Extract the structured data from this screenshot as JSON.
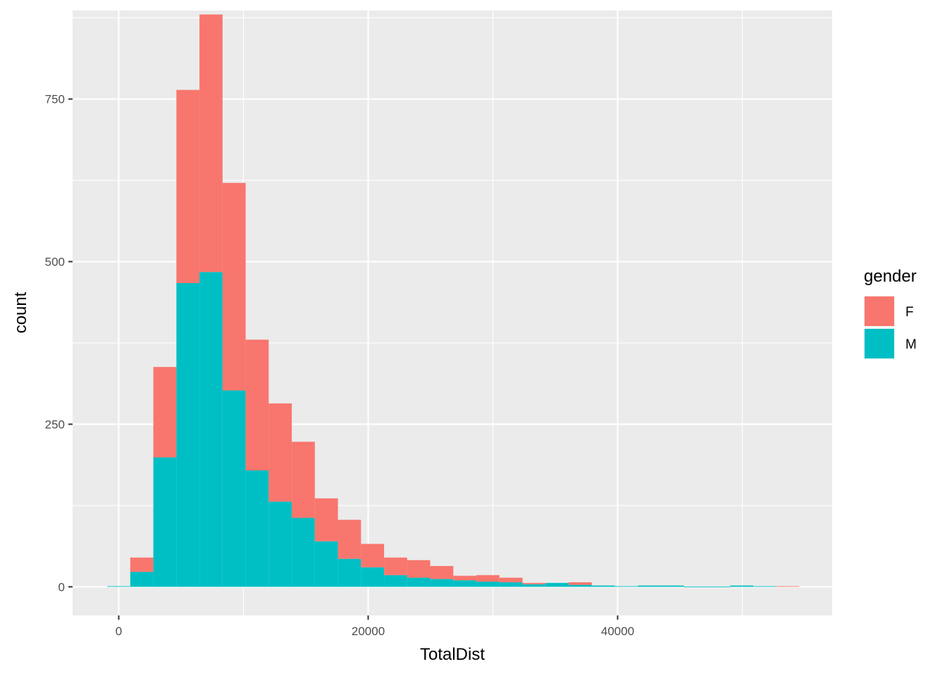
{
  "chart_data": {
    "type": "bar",
    "stacked": true,
    "xlabel": "TotalDist",
    "ylabel": "count",
    "xlim": [
      -3700,
      57200
    ],
    "ylim": [
      -44,
      886
    ],
    "xticks": [
      0,
      20000,
      40000
    ],
    "xtick_labels": [
      "0",
      "20000",
      "40000"
    ],
    "yticks": [
      0,
      250,
      500,
      750
    ],
    "ytick_labels": [
      "0",
      "250",
      "500",
      "750"
    ],
    "bin_width": 1850,
    "bin_centers": [
      0,
      1850,
      3700,
      5550,
      7400,
      9250,
      11100,
      12950,
      14800,
      16650,
      18500,
      20350,
      22200,
      24050,
      25900,
      27750,
      29600,
      31450,
      33300,
      35150,
      37000,
      38850,
      40700,
      42550,
      44400,
      46250,
      48100,
      49950,
      51800,
      53650
    ],
    "series": [
      {
        "name": "M",
        "color": "#00BFC4",
        "values": [
          1,
          23,
          199,
          467,
          484,
          302,
          179,
          131,
          106,
          70,
          43,
          30,
          18,
          14,
          12,
          10,
          8,
          7,
          4,
          6,
          3,
          2,
          1,
          2,
          2,
          0,
          0,
          2,
          1,
          0
        ]
      },
      {
        "name": "F",
        "color": "#F8766D",
        "values": [
          0,
          22,
          139,
          297,
          396,
          319,
          201,
          151,
          117,
          66,
          60,
          36,
          27,
          27,
          20,
          7,
          10,
          7,
          2,
          0,
          4,
          0,
          0,
          0,
          0,
          0,
          0,
          0,
          0,
          1
        ]
      }
    ],
    "legend": {
      "title": "gender",
      "position": "right",
      "entries": [
        {
          "label": "F",
          "color": "#F8766D"
        },
        {
          "label": "M",
          "color": "#00BFC4"
        }
      ]
    },
    "grid": true,
    "panel_background": "#EBEBEB",
    "grid_color": "#FFFFFF"
  }
}
